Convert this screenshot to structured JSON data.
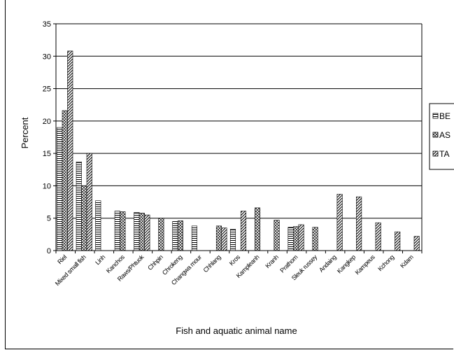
{
  "chart_data": {
    "type": "bar",
    "xlabel": "Fish and aquatic animal name",
    "ylabel": "Percent",
    "ylim": [
      0,
      35
    ],
    "yticks": [
      0,
      5,
      10,
      15,
      20,
      25,
      30,
      35
    ],
    "grid": true,
    "legend_position": "right",
    "categories": [
      "Riel",
      "Mixed small fish",
      "Linh",
      "Kanchos",
      "Raws/Phtuok",
      "Chhpin",
      "Chrokeng",
      "Changwa mour",
      "Chhlang",
      "Kros",
      "Kampleanh",
      "Kranh",
      "Prathom",
      "Sleuk russey",
      "Andaing",
      "Kangkep",
      "Kampeus",
      "Kchong",
      "Kdam"
    ],
    "series": [
      {
        "name": "BE",
        "pattern": "horizontal-lines",
        "values": [
          19.0,
          13.7,
          7.7,
          6.1,
          5.9,
          0,
          4.5,
          3.8,
          0,
          3.3,
          0,
          0,
          3.6,
          0,
          0,
          0,
          0,
          0,
          0
        ]
      },
      {
        "name": "AS",
        "pattern": "crosshatch",
        "values": [
          21.6,
          10.0,
          0,
          6.0,
          5.8,
          5.0,
          4.6,
          0,
          3.8,
          0,
          6.6,
          4.7,
          3.7,
          3.6,
          0,
          0,
          0,
          0,
          0
        ]
      },
      {
        "name": "TA",
        "pattern": "diagonal",
        "values": [
          30.8,
          15.0,
          0,
          0,
          5.5,
          0,
          0,
          0,
          3.5,
          6.1,
          0,
          0,
          4.0,
          0,
          8.7,
          8.3,
          4.3,
          2.9,
          2.2
        ]
      }
    ]
  }
}
